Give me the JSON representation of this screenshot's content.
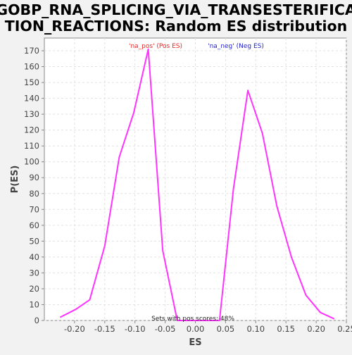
{
  "chart_data": {
    "type": "line",
    "title_lines": [
      "GOBP_RNA_SPLICING_VIA_TRANSESTERIFICA",
      "TION_REACTIONS: Random ES distribution"
    ],
    "xlabel": "ES",
    "ylabel": "P(ES)",
    "xlim": [
      -0.25,
      0.25
    ],
    "ylim": [
      0,
      178
    ],
    "x_ticks": [
      -0.2,
      -0.15,
      -0.1,
      -0.05,
      0.0,
      0.05,
      0.1,
      0.15,
      0.2,
      0.25
    ],
    "x_tick_labels": [
      "-0.20",
      "-0.15",
      "-0.10",
      "-0.05",
      "0.00",
      "0.05",
      "0.10",
      "0.15",
      "0.20",
      "0.25"
    ],
    "y_ticks": [
      0,
      10,
      20,
      30,
      40,
      50,
      60,
      70,
      80,
      90,
      100,
      110,
      120,
      130,
      140,
      150,
      160,
      170
    ],
    "y_tick_labels": [
      "0",
      "10",
      "20",
      "30",
      "40",
      "50",
      "60",
      "70",
      "80",
      "90",
      "100",
      "110",
      "120",
      "130",
      "140",
      "150",
      "160",
      "170"
    ],
    "grid": true,
    "legend": [
      {
        "label": "'na_pos' (Pos ES)",
        "color": "#ee2222"
      },
      {
        "label": "'na_neg' (Neg ES)",
        "color": "#2222cc"
      }
    ],
    "annotation": "Sets with pos scores: 48%",
    "series": [
      {
        "color": "#ff33ff",
        "x": [
          -0.224,
          -0.198,
          -0.175,
          -0.15,
          -0.126,
          -0.102,
          -0.078,
          -0.054,
          -0.03,
          -0.006,
          0.018,
          0.04,
          0.063,
          0.087,
          0.111,
          0.135,
          0.159,
          0.183,
          0.207,
          0.23
        ],
        "y": [
          2,
          7,
          13,
          47,
          103,
          131,
          171,
          44,
          0,
          0,
          0,
          0,
          83,
          145,
          118,
          72,
          40,
          16,
          5,
          1
        ]
      }
    ]
  }
}
